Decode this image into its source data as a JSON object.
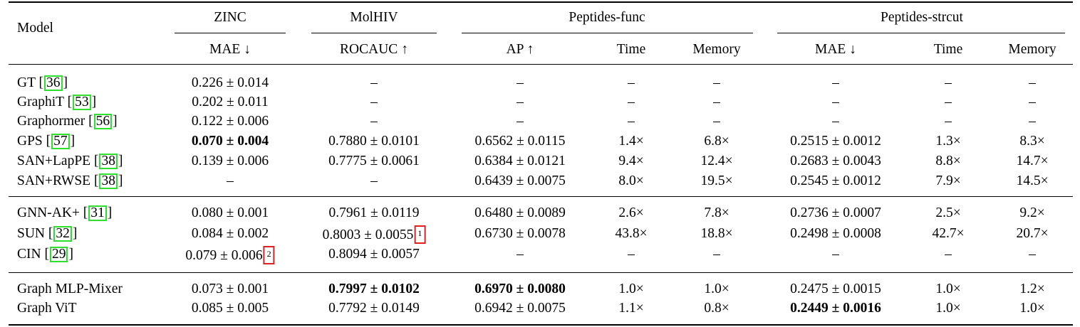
{
  "header": {
    "model": "Model",
    "groups": [
      "ZINC",
      "MolHIV",
      "Peptides-func",
      "Peptides-strcut"
    ],
    "metrics": [
      "MAE ↓",
      "ROCAUC ↑",
      "AP ↑",
      "Time",
      "Memory",
      "MAE ↓",
      "Time",
      "Memory"
    ]
  },
  "rows": [
    {
      "name": "GT",
      "cite": "36",
      "zinc": "0.226 ± 0.014",
      "molhiv": "–",
      "pf_ap": "–",
      "pf_time": "–",
      "pf_mem": "–",
      "ps_mae": "–",
      "ps_time": "–",
      "ps_mem": "–"
    },
    {
      "name": "GraphiT",
      "cite": "53",
      "zinc": "0.202 ± 0.011",
      "molhiv": "–",
      "pf_ap": "–",
      "pf_time": "–",
      "pf_mem": "–",
      "ps_mae": "–",
      "ps_time": "–",
      "ps_mem": "–"
    },
    {
      "name": "Graphormer",
      "cite": "56",
      "zinc": "0.122 ± 0.006",
      "molhiv": "–",
      "pf_ap": "–",
      "pf_time": "–",
      "pf_mem": "–",
      "ps_mae": "–",
      "ps_time": "–",
      "ps_mem": "–"
    },
    {
      "name": "GPS",
      "cite": "57",
      "zinc": "0.070 ± 0.004",
      "molhiv": "0.7880 ± 0.0101",
      "pf_ap": "0.6562 ± 0.0115",
      "pf_time": "1.4×",
      "pf_mem": "6.8×",
      "ps_mae": "0.2515 ± 0.0012",
      "ps_time": "1.3×",
      "ps_mem": "8.3×"
    },
    {
      "name": "SAN+LapPE",
      "cite": "38",
      "zinc": "0.139 ± 0.006",
      "molhiv": "0.7775 ± 0.0061",
      "pf_ap": "0.6384 ± 0.0121",
      "pf_time": "9.4×",
      "pf_mem": "12.4×",
      "ps_mae": "0.2683 ± 0.0043",
      "ps_time": "8.8×",
      "ps_mem": "14.7×"
    },
    {
      "name": "SAN+RWSE",
      "cite": "38",
      "zinc": "–",
      "molhiv": "–",
      "pf_ap": "0.6439 ± 0.0075",
      "pf_time": "8.0×",
      "pf_mem": "19.5×",
      "ps_mae": "0.2545 ± 0.0012",
      "ps_time": "7.9×",
      "ps_mem": "14.5×"
    },
    {
      "name": "GNN-AK+",
      "cite": "31",
      "zinc": "0.080 ± 0.001",
      "molhiv": "0.7961 ± 0.0119",
      "pf_ap": "0.6480 ± 0.0089",
      "pf_time": "2.6×",
      "pf_mem": "7.8×",
      "ps_mae": "0.2736 ± 0.0007",
      "ps_time": "2.5×",
      "ps_mem": "9.2×"
    },
    {
      "name": "SUN",
      "cite": "32",
      "zinc": "0.084 ± 0.002",
      "molhiv": "0.8003 ± 0.0055",
      "molhiv_fn": "1",
      "pf_ap": "0.6730 ± 0.0078",
      "pf_time": "43.8×",
      "pf_mem": "18.8×",
      "ps_mae": "0.2498 ± 0.0008",
      "ps_time": "42.7×",
      "ps_mem": "20.7×"
    },
    {
      "name": "CIN",
      "cite": "29",
      "zinc": "0.079 ± 0.006",
      "zinc_fn": "2",
      "molhiv": "0.8094 ± 0.0057",
      "pf_ap": "–",
      "pf_time": "–",
      "pf_mem": "–",
      "ps_mae": "–",
      "ps_time": "–",
      "ps_mem": "–"
    },
    {
      "name": "Graph MLP-Mixer",
      "zinc": "0.073 ± 0.001",
      "molhiv": "0.7997 ± 0.0102",
      "pf_ap": "0.6970 ± 0.0080",
      "pf_time": "1.0×",
      "pf_mem": "1.0×",
      "ps_mae": "0.2475 ± 0.0015",
      "ps_time": "1.0×",
      "ps_mem": "1.2×"
    },
    {
      "name": "Graph ViT",
      "zinc": "0.085 ± 0.005",
      "molhiv": "0.7792 ± 0.0149",
      "pf_ap": "0.6942 ± 0.0075",
      "pf_time": "1.1×",
      "pf_mem": "0.8×",
      "ps_mae": "0.2449 ± 0.0016",
      "ps_time": "1.0×",
      "ps_mem": "1.0×"
    }
  ]
}
